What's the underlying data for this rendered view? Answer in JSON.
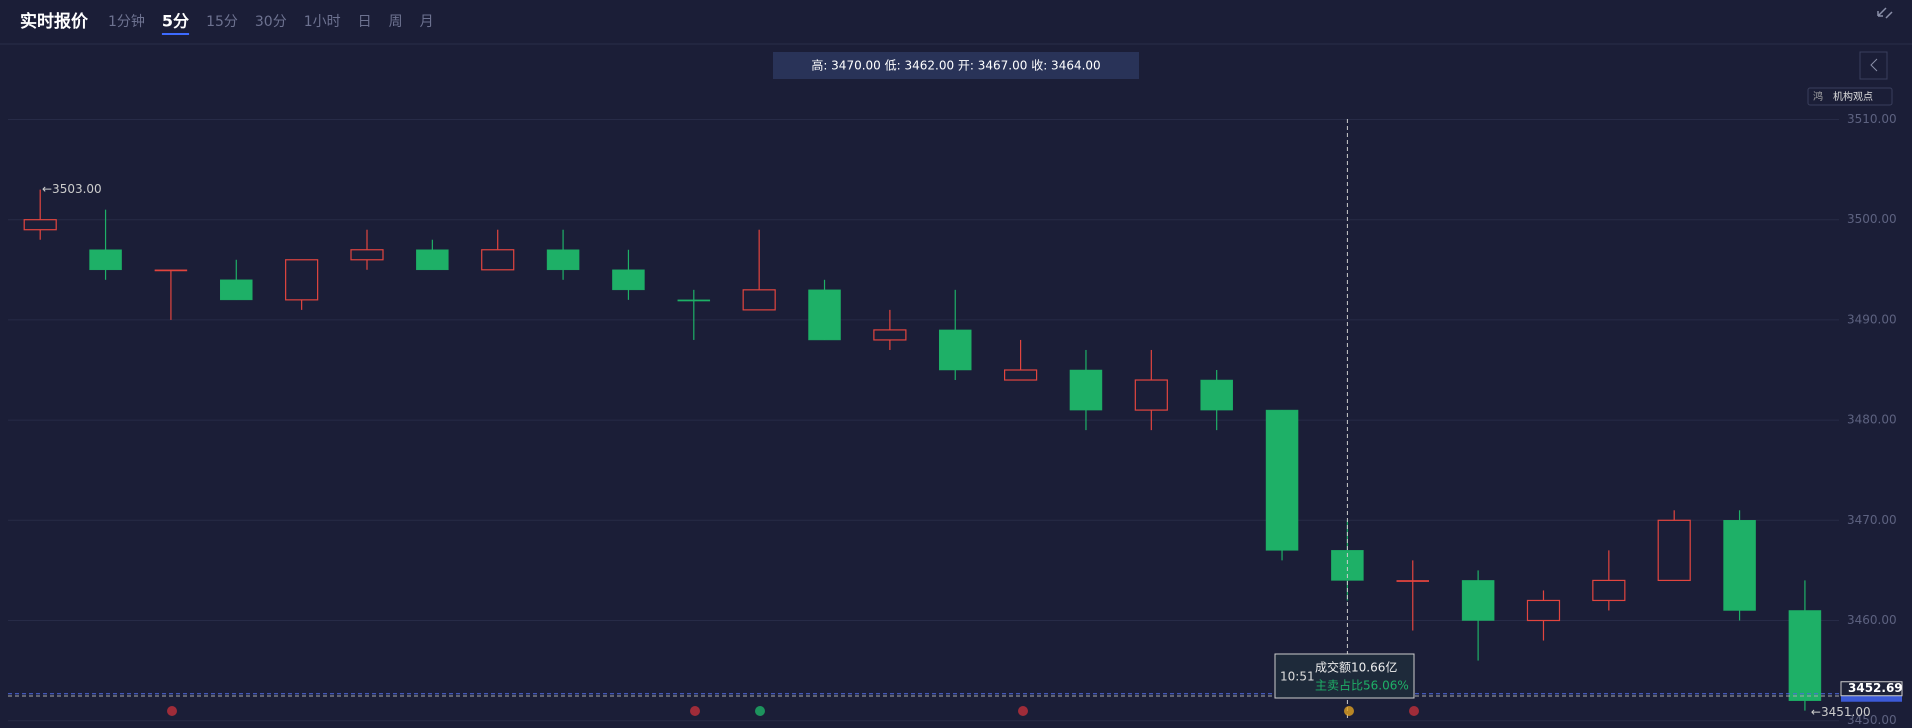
{
  "toolbar": {
    "title": "实时报价",
    "tabs": [
      "1分钟",
      "5分",
      "15分",
      "30分",
      "1小时",
      "日",
      "周",
      "月"
    ],
    "active_tab": 1
  },
  "info_bar": "高: 3470.00 低: 3462.00 开: 3467.00 收: 3464.00",
  "side_tags": [
    "鸿",
    "机构观点"
  ],
  "tooltip": {
    "time": "10:51",
    "amount": "成交额10.66亿",
    "ratio": "主卖占比56.06%"
  },
  "chart_data": {
    "type": "candlestick",
    "open": [
      3499,
      3497,
      3495,
      3494,
      3492,
      3496,
      3497,
      3495,
      3497,
      3495,
      3492,
      3491,
      3493,
      3488,
      3489,
      3484,
      3485,
      3481,
      3484,
      3481,
      3467,
      3464,
      3464,
      3460,
      3462,
      3464,
      3470,
      3461
    ],
    "high": [
      3503,
      3501,
      3495,
      3496,
      3496,
      3499,
      3498,
      3499,
      3499,
      3497,
      3493,
      3499,
      3494,
      3491,
      3493,
      3488,
      3487,
      3487,
      3485,
      3481,
      3470,
      3466,
      3465,
      3463,
      3467,
      3471,
      3471,
      3464
    ],
    "low": [
      3498,
      3494,
      3490,
      3492,
      3491,
      3495,
      3495,
      3495,
      3494,
      3492,
      3488,
      3491,
      3488,
      3487,
      3484,
      3484,
      3479,
      3479,
      3479,
      3466,
      3462,
      3459,
      3456,
      3458,
      3461,
      3464,
      3460,
      3451
    ],
    "close": [
      3500,
      3495,
      3495,
      3492,
      3496,
      3497,
      3495,
      3497,
      3495,
      3493,
      3492,
      3493,
      3488,
      3489,
      3485,
      3485,
      3481,
      3484,
      3481,
      3467,
      3464,
      3464,
      3460,
      3462,
      3464,
      3470,
      3461,
      3452
    ],
    "up_color": "#e2453f",
    "down_color": "#1eb067",
    "ylim": [
      3450,
      3510
    ],
    "yticks": [
      {
        "value": 3450,
        "label": "3450.00"
      },
      {
        "value": 3460,
        "label": "3460.00"
      },
      {
        "value": 3470,
        "label": "3470.00"
      },
      {
        "value": 3480,
        "label": "3480.00"
      },
      {
        "value": 3490,
        "label": "3490.00"
      },
      {
        "value": 3500,
        "label": "3500.00"
      },
      {
        "value": 3510,
        "label": "3510.00"
      }
    ],
    "grid": true,
    "max_label": "←3503.00",
    "min_label": "←3451.00",
    "last_price": {
      "value": 3452.69,
      "label": "3452.69"
    }
  }
}
